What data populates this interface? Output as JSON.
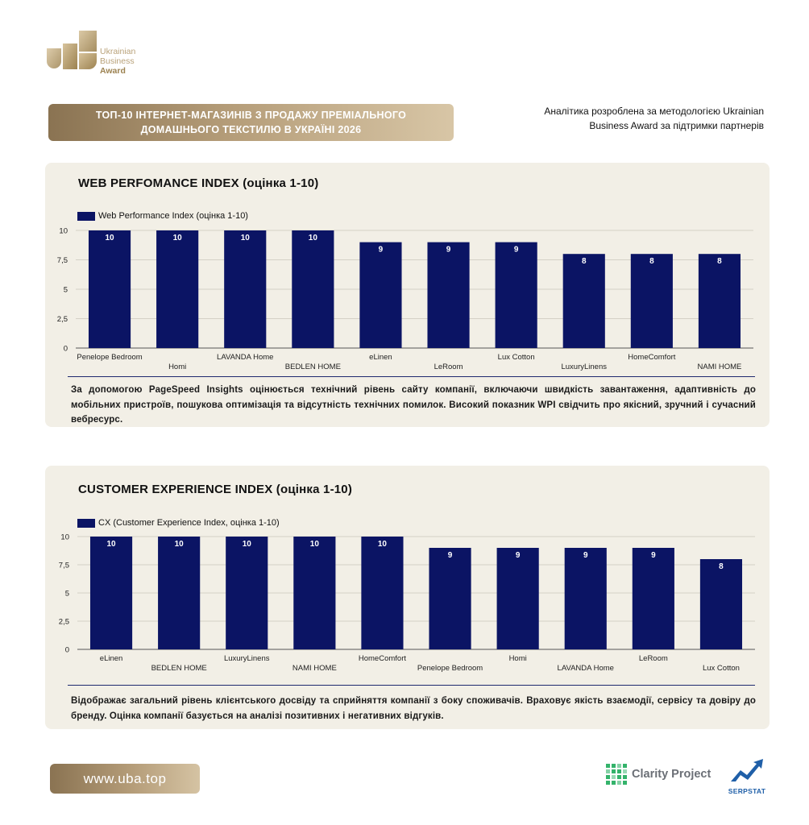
{
  "brand": {
    "logo_line1": "Ukrainian",
    "logo_line2": "Business",
    "logo_line3": "Award",
    "gold": "#b09670",
    "navy": "#0b1464"
  },
  "header": {
    "title": "ТОП-10 ІНТЕРНЕТ-МАГАЗИНІВ З ПРОДАЖУ ПРЕМІАЛЬНОГО\nДОМАШНЬОГО ТЕКСТИЛЮ В УКРАЇНІ 2026",
    "note": "Аналітика розроблена за методологією Ukrainian\nBusiness Award за підтримки партнерів"
  },
  "chart_data": [
    {
      "type": "bar",
      "title": "WEB PERFOMANCE INDEX (оцінка 1-10)",
      "legend": "Web Performance Index (оцінка 1-10)",
      "categories": [
        "Penelope Bedroom",
        "Homi",
        "LAVANDA Home",
        "BEDLEN HOME",
        "eLinen",
        "LeRoom",
        "Lux Cotton",
        "LuxuryLinens",
        "HomeComfort",
        "NAMI HOME"
      ],
      "values": [
        10,
        10,
        10,
        10,
        9,
        9,
        9,
        8,
        8,
        8
      ],
      "yticks": [
        "0",
        "2,5",
        "5",
        "7,5",
        "10"
      ],
      "ylim": [
        0,
        10
      ],
      "grid": true,
      "legend_position": "top-left",
      "color": "#0b1464",
      "description": "За допомогою PageSpeed Insights оцінюється технічний рівень сайту компанії, включаючи швидкість завантаження, адаптивність до мобільних пристроїв, пошукова оптимізація та відсутність технічних помилок. Високий показник WPI свідчить про якісний, зручний і сучасний вебресурс."
    },
    {
      "type": "bar",
      "title": "CUSTOMER EXPERIENCE INDEX (оцінка 1-10)",
      "legend": "CX (Customer Experience Index, оцінка 1-10)",
      "categories": [
        "eLinen",
        "BEDLEN HOME",
        "LuxuryLinens",
        "NAMI HOME",
        "HomeComfort",
        "Penelope Bedroom",
        "Homi",
        "LAVANDA Home",
        "LeRoom",
        "Lux Cotton"
      ],
      "values": [
        10,
        10,
        10,
        10,
        10,
        9,
        9,
        9,
        9,
        8
      ],
      "yticks": [
        "0",
        "2,5",
        "5",
        "7,5",
        "10"
      ],
      "ylim": [
        0,
        10
      ],
      "grid": true,
      "legend_position": "top-left",
      "color": "#0b1464",
      "description": "Відображає загальний рівень клієнтського досвіду та сприйняття компанії з боку споживачів. Враховує якість взаємодії, сервісу та довіру до бренду. Оцінка компанії базується на аналізі позитивних і негативних відгуків."
    }
  ],
  "footer": {
    "url": "www.uba.top",
    "partner1": "Clarity Project",
    "partner2": "SERPSTAT"
  }
}
